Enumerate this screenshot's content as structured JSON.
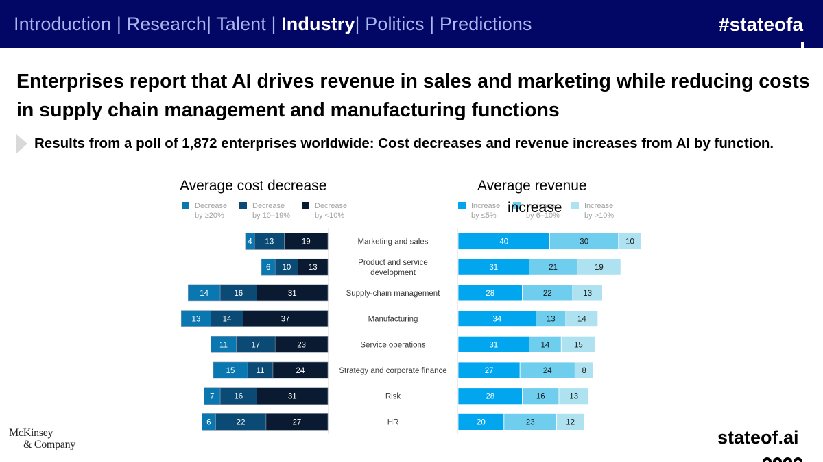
{
  "header": {
    "nav": [
      {
        "label": "Introduction",
        "active": false
      },
      {
        "label": "Research",
        "active": false
      },
      {
        "label": "Talent",
        "active": false
      },
      {
        "label": "Industry",
        "active": true
      },
      {
        "label": "Politics",
        "active": false
      },
      {
        "label": "Predictions",
        "active": false
      }
    ],
    "separator": "|",
    "hashtag": "#stateofa"
  },
  "headline": "Enterprises report that AI drives revenue in sales and marketing while reducing costs in supply chain management and manufacturing functions",
  "subtitle": "Results from a poll of 1,872 enterprises worldwide: Cost decreases and revenue increases from AI by function.",
  "footer": {
    "logo_line1": "McKinsey",
    "logo_line2": "& Company",
    "brand": "stateof.ai"
  },
  "colors": {
    "header_bg": "#020664",
    "nav_text": "#a9b6ef",
    "cost_ge20": "#0b77b0",
    "cost_10_19": "#0b4a74",
    "cost_lt10": "#0a1a31",
    "rev_le5": "#02a6ee",
    "rev_6_10": "#6fcdee",
    "rev_gt10": "#aee2f1"
  },
  "chart_data": {
    "type": "bar",
    "orientation": "horizontal",
    "stacked": true,
    "diverging": true,
    "unit": "% of respondents",
    "categories": [
      "Marketing and sales",
      "Product and service development",
      "Supply-chain management",
      "Manufacturing",
      "Service operations",
      "Strategy and corporate finance",
      "Risk",
      "HR"
    ],
    "left_panel": {
      "title": "Average cost decrease",
      "series": [
        {
          "name": "Decrease by ≥20%",
          "legend_line1": "Decrease",
          "legend_line2": "by ≥20%",
          "color": "#0b77b0",
          "values": [
            4,
            6,
            14,
            13,
            11,
            15,
            7,
            6
          ]
        },
        {
          "name": "Decrease by 10–19%",
          "legend_line1": "Decrease",
          "legend_line2": "by 10–19%",
          "color": "#0b4a74",
          "values": [
            13,
            10,
            16,
            14,
            17,
            11,
            16,
            22
          ]
        },
        {
          "name": "Decrease by <10%",
          "legend_line1": "Decrease",
          "legend_line2": "by <10%",
          "color": "#0a1a31",
          "values": [
            19,
            13,
            31,
            37,
            23,
            24,
            31,
            27
          ]
        }
      ]
    },
    "right_panel": {
      "title": "Average revenue increase",
      "title_line1": "Average revenue",
      "title_line2": "increase",
      "series": [
        {
          "name": "Increase by ≤5%",
          "legend_line1": "Increase",
          "legend_line2": "by ≤5%",
          "color": "#02a6ee",
          "values": [
            40,
            31,
            28,
            34,
            31,
            27,
            28,
            20
          ]
        },
        {
          "name": "Increase by 6–10%",
          "legend_line1": "Increase",
          "legend_line2": "by 6–10%",
          "color": "#6fcdee",
          "values": [
            30,
            21,
            22,
            13,
            14,
            24,
            16,
            23
          ]
        },
        {
          "name": "Increase by >10%",
          "legend_line1": "Increase",
          "legend_line2": "by >10%",
          "color": "#aee2f1",
          "values": [
            10,
            19,
            13,
            14,
            15,
            8,
            13,
            12
          ]
        }
      ]
    },
    "legend_placement": "top",
    "grid": false
  }
}
